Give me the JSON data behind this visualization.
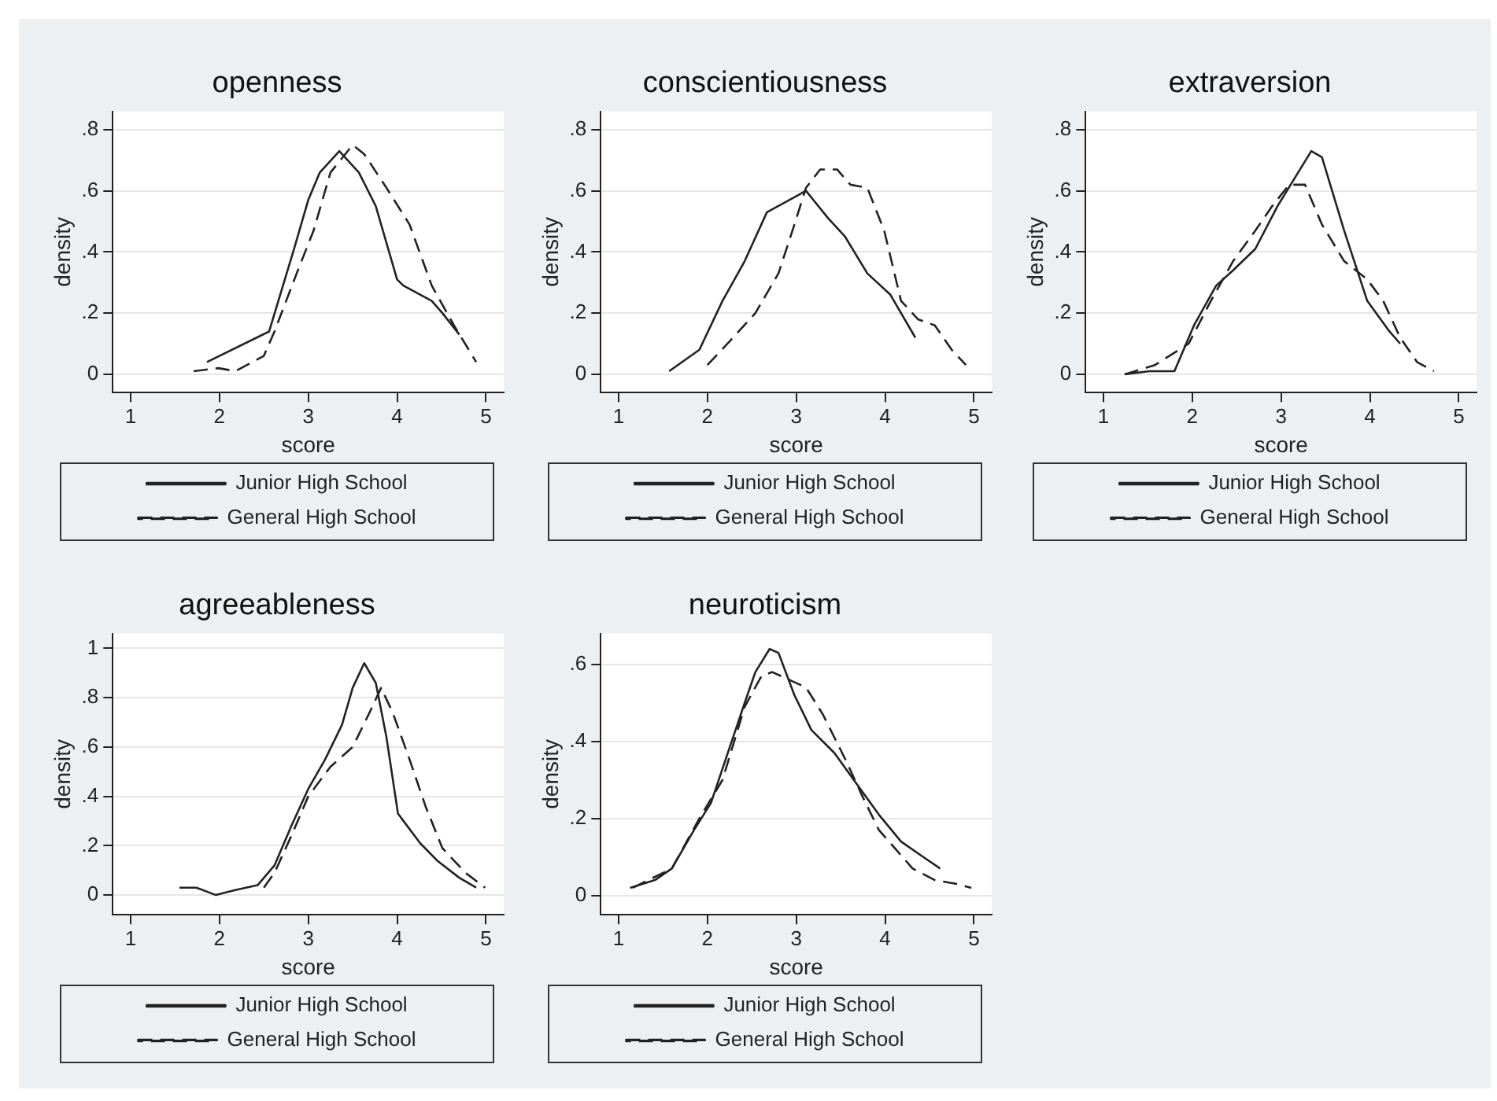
{
  "chart_data": [
    {
      "type": "line",
      "title": "openness",
      "xlabel": "score",
      "ylabel": "density",
      "xlim": [
        0.8,
        5.2
      ],
      "xticks": [
        1,
        2,
        3,
        4,
        5
      ],
      "ylim": [
        -0.06,
        0.86
      ],
      "yticks": [
        {
          "value": 0,
          "label": "0"
        },
        {
          "value": 0.2,
          "label": ".2"
        },
        {
          "value": 0.4,
          "label": ".4"
        },
        {
          "value": 0.6,
          "label": ".6"
        },
        {
          "value": 0.8,
          "label": ".8"
        }
      ],
      "grid": "y",
      "legend": "bottom",
      "series": [
        {
          "name": "Junior High School",
          "color": "#222222",
          "line_style": "solid",
          "x": [
            1.86,
            2.56,
            2.84,
            3.0,
            3.13,
            3.35,
            3.57,
            3.76,
            4.0,
            4.07,
            4.39,
            4.51,
            4.7
          ],
          "values": [
            0.04,
            0.14,
            0.41,
            0.57,
            0.66,
            0.73,
            0.66,
            0.55,
            0.31,
            0.29,
            0.24,
            0.2,
            0.13
          ]
        },
        {
          "name": "General High School",
          "color": "#222222",
          "line_style": "dashed",
          "x": [
            1.71,
            1.99,
            2.18,
            2.5,
            2.62,
            2.87,
            3.06,
            3.25,
            3.5,
            3.63,
            3.88,
            4.14,
            4.39,
            4.64,
            4.89
          ],
          "values": [
            0.01,
            0.02,
            0.01,
            0.06,
            0.14,
            0.33,
            0.47,
            0.66,
            0.75,
            0.72,
            0.61,
            0.49,
            0.29,
            0.16,
            0.04
          ]
        }
      ]
    },
    {
      "type": "line",
      "title": "conscientiousness",
      "xlabel": "score",
      "ylabel": "density",
      "xlim": [
        0.8,
        5.2
      ],
      "xticks": [
        1,
        2,
        3,
        4,
        5
      ],
      "ylim": [
        -0.06,
        0.86
      ],
      "yticks": [
        {
          "value": 0,
          "label": "0"
        },
        {
          "value": 0.2,
          "label": ".2"
        },
        {
          "value": 0.4,
          "label": ".4"
        },
        {
          "value": 0.6,
          "label": ".6"
        },
        {
          "value": 0.8,
          "label": ".8"
        }
      ],
      "grid": "y",
      "legend": "bottom",
      "series": [
        {
          "name": "Junior High School",
          "color": "#222222",
          "line_style": "solid",
          "x": [
            1.57,
            1.91,
            2.17,
            2.42,
            2.67,
            2.86,
            3.11,
            3.36,
            3.55,
            3.8,
            4.06,
            4.34
          ],
          "values": [
            0.01,
            0.08,
            0.24,
            0.37,
            0.53,
            0.56,
            0.6,
            0.51,
            0.45,
            0.33,
            0.26,
            0.12
          ]
        },
        {
          "name": "General High School",
          "color": "#222222",
          "line_style": "dashed",
          "x": [
            2.0,
            2.29,
            2.54,
            2.8,
            2.98,
            3.11,
            3.27,
            3.46,
            3.61,
            3.8,
            3.99,
            4.18,
            4.37,
            4.56,
            4.75,
            4.91
          ],
          "values": [
            0.03,
            0.12,
            0.2,
            0.33,
            0.49,
            0.61,
            0.67,
            0.67,
            0.62,
            0.61,
            0.47,
            0.24,
            0.18,
            0.16,
            0.08,
            0.03
          ]
        }
      ]
    },
    {
      "type": "line",
      "title": "extraversion",
      "xlabel": "score",
      "ylabel": "density",
      "xlim": [
        0.8,
        5.2
      ],
      "xticks": [
        1,
        2,
        3,
        4,
        5
      ],
      "ylim": [
        -0.06,
        0.86
      ],
      "yticks": [
        {
          "value": 0,
          "label": "0"
        },
        {
          "value": 0.2,
          "label": ".2"
        },
        {
          "value": 0.4,
          "label": ".4"
        },
        {
          "value": 0.6,
          "label": ".6"
        },
        {
          "value": 0.8,
          "label": ".8"
        }
      ],
      "grid": "y",
      "legend": "bottom",
      "series": [
        {
          "name": "Junior High School",
          "color": "#222222",
          "line_style": "solid",
          "x": [
            1.24,
            1.52,
            1.8,
            2.02,
            2.27,
            2.46,
            2.71,
            2.96,
            3.15,
            3.34,
            3.46,
            3.71,
            3.97,
            4.22,
            4.34
          ],
          "values": [
            0.0,
            0.01,
            0.01,
            0.16,
            0.29,
            0.34,
            0.41,
            0.55,
            0.64,
            0.73,
            0.71,
            0.47,
            0.24,
            0.14,
            0.1
          ]
        },
        {
          "name": "General High School",
          "color": "#222222",
          "line_style": "dashed",
          "x": [
            1.24,
            1.58,
            1.96,
            2.21,
            2.46,
            2.71,
            2.9,
            3.09,
            3.27,
            3.46,
            3.71,
            3.97,
            4.15,
            4.34,
            4.53,
            4.72
          ],
          "values": [
            0.0,
            0.03,
            0.1,
            0.24,
            0.37,
            0.47,
            0.55,
            0.62,
            0.62,
            0.49,
            0.37,
            0.31,
            0.24,
            0.12,
            0.04,
            0.01
          ]
        }
      ]
    },
    {
      "type": "line",
      "title": "agreeableness",
      "xlabel": "score",
      "ylabel": "density",
      "xlim": [
        0.8,
        5.2
      ],
      "xticks": [
        1,
        2,
        3,
        4,
        5
      ],
      "ylim": [
        -0.08,
        1.06
      ],
      "yticks": [
        {
          "value": 0,
          "label": "0"
        },
        {
          "value": 0.2,
          "label": ".2"
        },
        {
          "value": 0.4,
          "label": ".4"
        },
        {
          "value": 0.6,
          "label": ".6"
        },
        {
          "value": 0.8,
          "label": ".8"
        },
        {
          "value": 1,
          "label": "1"
        }
      ],
      "grid": "y",
      "legend": "bottom",
      "series": [
        {
          "name": "Junior High School",
          "color": "#222222",
          "line_style": "solid",
          "x": [
            1.55,
            1.74,
            1.96,
            2.18,
            2.43,
            2.62,
            2.81,
            3.0,
            3.19,
            3.38,
            3.5,
            3.63,
            3.76,
            3.88,
            4.01,
            4.26,
            4.45,
            4.7,
            4.89
          ],
          "values": [
            0.03,
            0.03,
            0.0,
            0.02,
            0.04,
            0.12,
            0.28,
            0.43,
            0.55,
            0.69,
            0.84,
            0.94,
            0.86,
            0.64,
            0.33,
            0.21,
            0.14,
            0.07,
            0.03
          ]
        },
        {
          "name": "General High School",
          "color": "#222222",
          "line_style": "dashed",
          "x": [
            2.5,
            2.62,
            2.81,
            3.0,
            3.25,
            3.5,
            3.69,
            3.82,
            3.95,
            4.14,
            4.32,
            4.51,
            4.77,
            4.99
          ],
          "values": [
            0.03,
            0.09,
            0.24,
            0.4,
            0.52,
            0.6,
            0.74,
            0.84,
            0.74,
            0.55,
            0.36,
            0.19,
            0.09,
            0.03
          ]
        }
      ]
    },
    {
      "type": "line",
      "title": "neuroticism",
      "xlabel": "score",
      "ylabel": "density",
      "xlim": [
        0.8,
        5.2
      ],
      "xticks": [
        1,
        2,
        3,
        4,
        5
      ],
      "ylim": [
        -0.05,
        0.68
      ],
      "yticks": [
        {
          "value": 0,
          "label": "0"
        },
        {
          "value": 0.2,
          "label": ".2"
        },
        {
          "value": 0.4,
          "label": ".4"
        },
        {
          "value": 0.6,
          "label": ".6"
        }
      ],
      "grid": "y",
      "legend": "bottom",
      "series": [
        {
          "name": "Junior High School",
          "color": "#222222",
          "line_style": "solid",
          "x": [
            1.13,
            1.41,
            1.6,
            1.85,
            2.04,
            2.23,
            2.42,
            2.54,
            2.7,
            2.8,
            2.98,
            3.17,
            3.43,
            3.68,
            3.93,
            4.18,
            4.43,
            4.62
          ],
          "values": [
            0.02,
            0.04,
            0.07,
            0.17,
            0.24,
            0.37,
            0.5,
            0.58,
            0.64,
            0.63,
            0.52,
            0.43,
            0.37,
            0.29,
            0.21,
            0.14,
            0.1,
            0.07
          ]
        },
        {
          "name": "General High School",
          "color": "#222222",
          "line_style": "dashed",
          "x": [
            1.16,
            1.6,
            1.91,
            2.17,
            2.42,
            2.61,
            2.73,
            2.92,
            3.11,
            3.3,
            3.56,
            3.74,
            3.93,
            4.12,
            4.31,
            4.56,
            4.81,
            4.97
          ],
          "values": [
            0.02,
            0.07,
            0.2,
            0.3,
            0.49,
            0.57,
            0.58,
            0.56,
            0.54,
            0.47,
            0.35,
            0.26,
            0.17,
            0.12,
            0.07,
            0.04,
            0.03,
            0.02
          ]
        }
      ]
    }
  ]
}
